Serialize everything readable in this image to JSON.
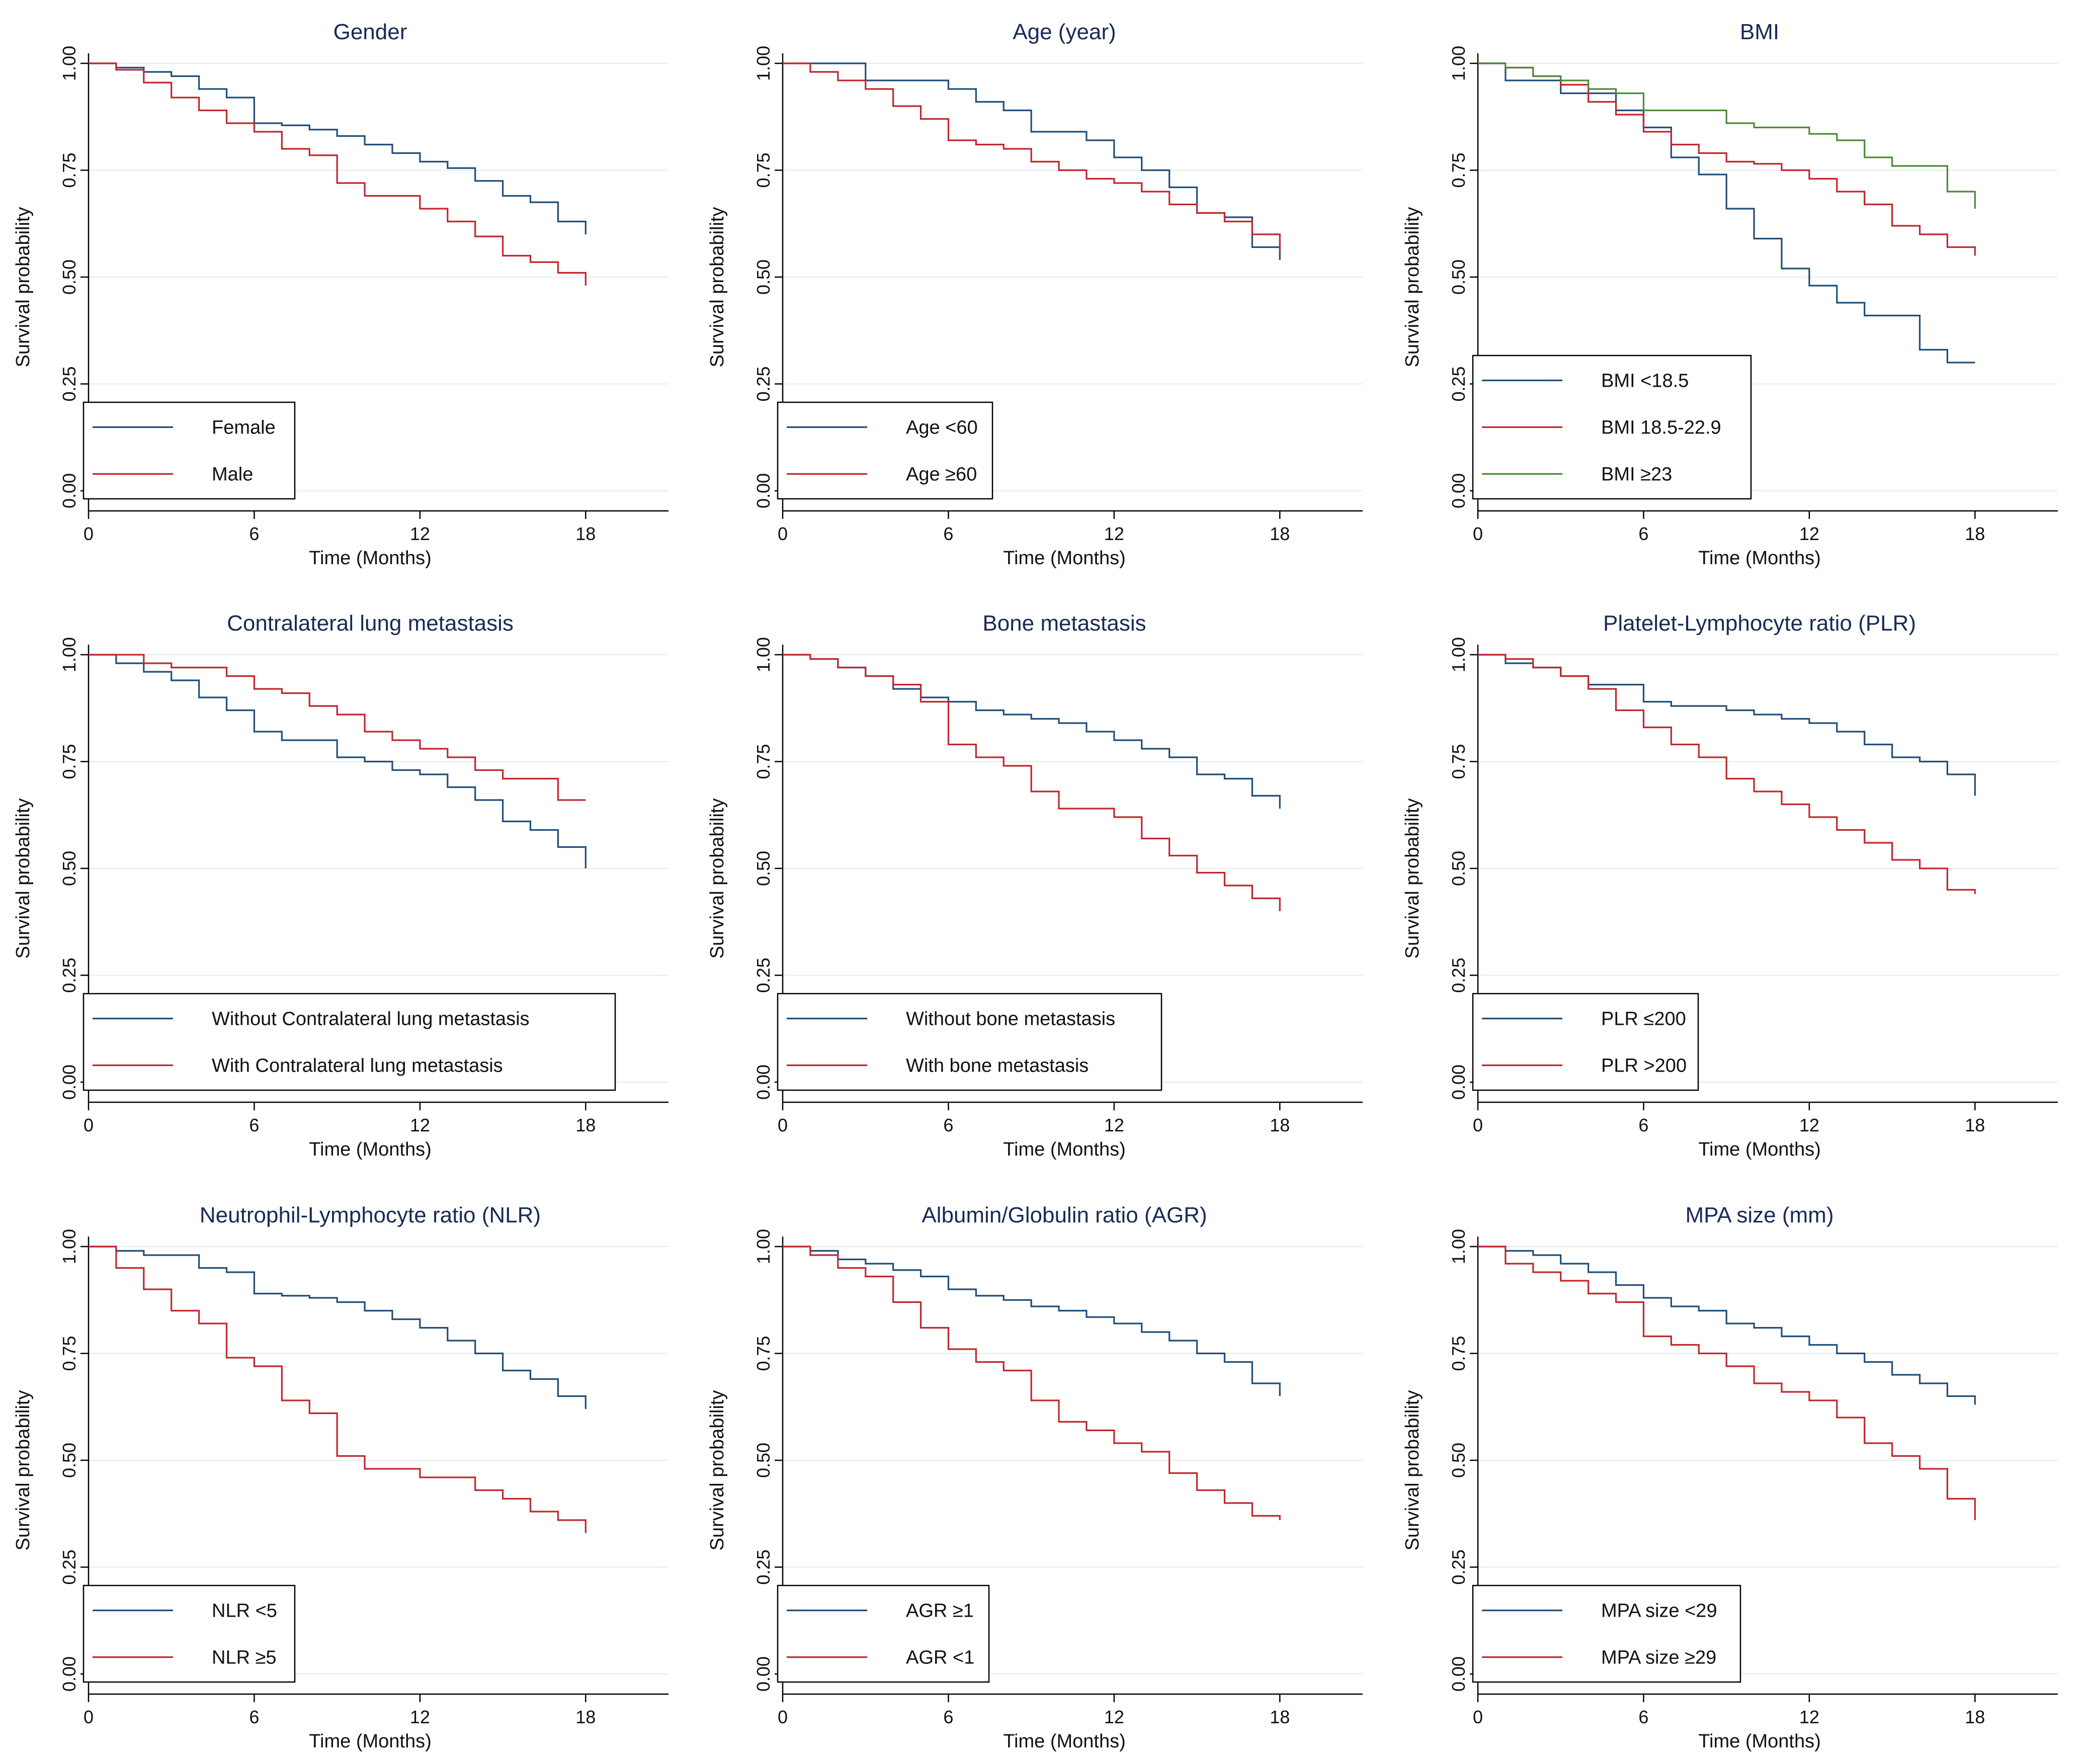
{
  "colors": {
    "blue": "#1f4e79",
    "red": "#c0272d",
    "green": "#4e8a35",
    "grid": "#e3ecef"
  },
  "chart_data": [
    {
      "type": "line",
      "step": true,
      "title": "Gender",
      "xlabel": "Time (Months)",
      "ylabel": "Survival probability",
      "xlim": [
        0,
        21
      ],
      "ylim": [
        0,
        1
      ],
      "xticks": [
        "0",
        "6",
        "12",
        "18"
      ],
      "yticks": [
        "0.00",
        "0.25",
        "0.50",
        "0.75",
        "1.00"
      ],
      "legend_position": "bottom-left",
      "series": [
        {
          "name": "Female",
          "color": "blue",
          "x": [
            0,
            1,
            2,
            3,
            4,
            5,
            6,
            7,
            8,
            9,
            10,
            11,
            12,
            13,
            14,
            15,
            16,
            17,
            18
          ],
          "values": [
            1.0,
            0.99,
            0.98,
            0.97,
            0.94,
            0.92,
            0.86,
            0.855,
            0.845,
            0.83,
            0.81,
            0.79,
            0.77,
            0.755,
            0.725,
            0.69,
            0.675,
            0.63,
            0.6
          ]
        },
        {
          "name": "Male",
          "color": "red",
          "x": [
            0,
            1,
            2,
            3,
            4,
            5,
            6,
            7,
            8,
            9,
            10,
            11,
            12,
            13,
            14,
            15,
            16,
            17,
            18
          ],
          "values": [
            1.0,
            0.985,
            0.955,
            0.92,
            0.89,
            0.86,
            0.84,
            0.8,
            0.785,
            0.72,
            0.69,
            0.69,
            0.66,
            0.63,
            0.595,
            0.55,
            0.535,
            0.51,
            0.48
          ]
        }
      ]
    },
    {
      "type": "line",
      "step": true,
      "title": "Age (year)",
      "xlabel": "Time (Months)",
      "ylabel": "Survival probability",
      "xlim": [
        0,
        21
      ],
      "ylim": [
        0,
        1
      ],
      "xticks": [
        "0",
        "6",
        "12",
        "18"
      ],
      "yticks": [
        "0.00",
        "0.25",
        "0.50",
        "0.75",
        "1.00"
      ],
      "legend_position": "bottom-left",
      "series": [
        {
          "name": "Age <60",
          "color": "blue",
          "x": [
            0,
            3,
            6,
            7,
            8,
            9,
            11,
            12,
            13,
            14,
            15,
            16,
            17,
            18
          ],
          "values": [
            1.0,
            0.96,
            0.94,
            0.91,
            0.89,
            0.84,
            0.82,
            0.78,
            0.75,
            0.71,
            0.65,
            0.64,
            0.57,
            0.54
          ]
        },
        {
          "name": "Age ≥60",
          "color": "red",
          "x": [
            0,
            1,
            2,
            3,
            4,
            5,
            6,
            7,
            8,
            9,
            10,
            11,
            12,
            13,
            14,
            15,
            16,
            17,
            18
          ],
          "values": [
            1.0,
            0.98,
            0.96,
            0.94,
            0.9,
            0.87,
            0.82,
            0.81,
            0.8,
            0.77,
            0.75,
            0.73,
            0.72,
            0.7,
            0.67,
            0.65,
            0.63,
            0.6,
            0.56
          ]
        }
      ]
    },
    {
      "type": "line",
      "step": true,
      "title": "BMI",
      "xlabel": "Time (Months)",
      "ylabel": "Survival probability",
      "xlim": [
        0,
        21
      ],
      "ylim": [
        0,
        1
      ],
      "xticks": [
        "0",
        "6",
        "12",
        "18"
      ],
      "yticks": [
        "0.00",
        "0.25",
        "0.50",
        "0.75",
        "1.00"
      ],
      "legend_position": "bottom-left",
      "series": [
        {
          "name": "BMI <18.5",
          "color": "blue",
          "x": [
            0,
            1,
            3,
            5,
            6,
            7,
            8,
            9,
            10,
            11,
            12,
            13,
            14,
            15,
            16,
            17,
            18
          ],
          "values": [
            1.0,
            0.96,
            0.93,
            0.89,
            0.85,
            0.78,
            0.74,
            0.66,
            0.59,
            0.52,
            0.48,
            0.44,
            0.41,
            0.41,
            0.33,
            0.3,
            0.3
          ]
        },
        {
          "name": "BMI 18.5-22.9",
          "color": "red",
          "x": [
            0,
            1,
            2,
            3,
            4,
            5,
            6,
            7,
            8,
            9,
            10,
            11,
            12,
            13,
            14,
            15,
            16,
            17,
            18
          ],
          "values": [
            1.0,
            0.99,
            0.97,
            0.95,
            0.91,
            0.88,
            0.84,
            0.81,
            0.79,
            0.77,
            0.765,
            0.75,
            0.73,
            0.7,
            0.67,
            0.62,
            0.6,
            0.57,
            0.55
          ]
        },
        {
          "name": "BMI ≥23",
          "color": "green",
          "x": [
            0,
            1,
            2,
            3,
            4,
            5,
            6,
            9,
            10,
            12,
            13,
            14,
            15,
            17,
            18
          ],
          "values": [
            1.0,
            0.99,
            0.97,
            0.96,
            0.94,
            0.93,
            0.89,
            0.86,
            0.85,
            0.835,
            0.82,
            0.78,
            0.76,
            0.7,
            0.66
          ]
        }
      ]
    },
    {
      "type": "line",
      "step": true,
      "title": "Contralateral lung metastasis",
      "xlabel": "Time (Months)",
      "ylabel": "Survival probability",
      "xlim": [
        0,
        21
      ],
      "ylim": [
        0,
        1
      ],
      "xticks": [
        "0",
        "6",
        "12",
        "18"
      ],
      "yticks": [
        "0.00",
        "0.25",
        "0.50",
        "0.75",
        "1.00"
      ],
      "legend_position": "bottom-left",
      "series": [
        {
          "name": "Without Contralateral lung metastasis",
          "color": "blue",
          "x": [
            0,
            1,
            2,
            3,
            4,
            5,
            6,
            7,
            9,
            10,
            11,
            12,
            13,
            14,
            15,
            16,
            17,
            18
          ],
          "values": [
            1.0,
            0.98,
            0.96,
            0.94,
            0.9,
            0.87,
            0.82,
            0.8,
            0.76,
            0.75,
            0.73,
            0.72,
            0.69,
            0.66,
            0.61,
            0.59,
            0.55,
            0.5
          ]
        },
        {
          "name": "With Contralateral lung metastasis",
          "color": "red",
          "x": [
            0,
            2,
            3,
            5,
            6,
            7,
            8,
            9,
            10,
            11,
            12,
            13,
            14,
            15,
            17,
            18
          ],
          "values": [
            1.0,
            0.98,
            0.97,
            0.95,
            0.92,
            0.91,
            0.88,
            0.86,
            0.82,
            0.8,
            0.78,
            0.76,
            0.73,
            0.71,
            0.66,
            0.66
          ]
        }
      ]
    },
    {
      "type": "line",
      "step": true,
      "title": "Bone metastasis",
      "xlabel": "Time (Months)",
      "ylabel": "Survival probability",
      "xlim": [
        0,
        21
      ],
      "ylim": [
        0,
        1
      ],
      "xticks": [
        "0",
        "6",
        "12",
        "18"
      ],
      "yticks": [
        "0.00",
        "0.25",
        "0.50",
        "0.75",
        "1.00"
      ],
      "legend_position": "bottom-left",
      "series": [
        {
          "name": "Without bone metastasis",
          "color": "blue",
          "x": [
            0,
            1,
            2,
            3,
            4,
            5,
            6,
            7,
            8,
            9,
            10,
            11,
            12,
            13,
            14,
            15,
            16,
            17,
            18
          ],
          "values": [
            1.0,
            0.99,
            0.97,
            0.95,
            0.92,
            0.9,
            0.89,
            0.87,
            0.86,
            0.85,
            0.84,
            0.82,
            0.8,
            0.78,
            0.76,
            0.72,
            0.71,
            0.67,
            0.64
          ]
        },
        {
          "name": "With bone metastasis",
          "color": "red",
          "x": [
            0,
            1,
            2,
            3,
            4,
            5,
            6,
            7,
            8,
            9,
            10,
            12,
            13,
            14,
            15,
            16,
            17,
            18
          ],
          "values": [
            1.0,
            0.99,
            0.97,
            0.95,
            0.93,
            0.89,
            0.79,
            0.76,
            0.74,
            0.68,
            0.64,
            0.62,
            0.57,
            0.53,
            0.49,
            0.46,
            0.43,
            0.4
          ]
        }
      ]
    },
    {
      "type": "line",
      "step": true,
      "title": "Platelet-Lymphocyte ratio (PLR)",
      "xlabel": "Time (Months)",
      "ylabel": "Survival probability",
      "xlim": [
        0,
        21
      ],
      "ylim": [
        0,
        1
      ],
      "xticks": [
        "0",
        "6",
        "12",
        "18"
      ],
      "yticks": [
        "0.00",
        "0.25",
        "0.50",
        "0.75",
        "1.00"
      ],
      "legend_position": "bottom-left",
      "series": [
        {
          "name": "PLR ≤200",
          "color": "blue",
          "x": [
            0,
            1,
            2,
            3,
            4,
            6,
            7,
            9,
            10,
            11,
            12,
            13,
            14,
            15,
            16,
            17,
            18
          ],
          "values": [
            1.0,
            0.98,
            0.97,
            0.95,
            0.93,
            0.89,
            0.88,
            0.87,
            0.86,
            0.85,
            0.84,
            0.82,
            0.79,
            0.76,
            0.75,
            0.72,
            0.67
          ]
        },
        {
          "name": "PLR >200",
          "color": "red",
          "x": [
            0,
            1,
            2,
            3,
            4,
            5,
            6,
            7,
            8,
            9,
            10,
            11,
            12,
            13,
            14,
            15,
            16,
            17,
            18
          ],
          "values": [
            1.0,
            0.99,
            0.97,
            0.95,
            0.92,
            0.87,
            0.83,
            0.79,
            0.76,
            0.71,
            0.68,
            0.65,
            0.62,
            0.59,
            0.56,
            0.52,
            0.5,
            0.45,
            0.44
          ]
        }
      ]
    },
    {
      "type": "line",
      "step": true,
      "title": "Neutrophil-Lymphocyte ratio (NLR)",
      "xlabel": "Time (Months)",
      "ylabel": "Survival probability",
      "xlim": [
        0,
        21
      ],
      "ylim": [
        0,
        1
      ],
      "xticks": [
        "0",
        "6",
        "12",
        "18"
      ],
      "yticks": [
        "0.00",
        "0.25",
        "0.50",
        "0.75",
        "1.00"
      ],
      "legend_position": "bottom-left",
      "series": [
        {
          "name": "NLR <5",
          "color": "blue",
          "x": [
            0,
            1,
            2,
            3,
            4,
            5,
            6,
            7,
            8,
            9,
            10,
            11,
            12,
            13,
            14,
            15,
            16,
            17,
            18
          ],
          "values": [
            1.0,
            0.99,
            0.98,
            0.98,
            0.95,
            0.94,
            0.89,
            0.885,
            0.88,
            0.87,
            0.85,
            0.83,
            0.81,
            0.78,
            0.75,
            0.71,
            0.69,
            0.65,
            0.62
          ]
        },
        {
          "name": "NLR ≥5",
          "color": "red",
          "x": [
            0,
            1,
            2,
            3,
            4,
            5,
            6,
            7,
            8,
            9,
            10,
            12,
            14,
            15,
            16,
            17,
            18
          ],
          "values": [
            1.0,
            0.95,
            0.9,
            0.85,
            0.82,
            0.74,
            0.72,
            0.64,
            0.61,
            0.51,
            0.48,
            0.46,
            0.43,
            0.41,
            0.38,
            0.36,
            0.33
          ]
        }
      ]
    },
    {
      "type": "line",
      "step": true,
      "title": "Albumin/Globulin ratio (AGR)",
      "xlabel": "Time (Months)",
      "ylabel": "Survival probability",
      "xlim": [
        0,
        21
      ],
      "ylim": [
        0,
        1
      ],
      "xticks": [
        "0",
        "6",
        "12",
        "18"
      ],
      "yticks": [
        "0.00",
        "0.25",
        "0.50",
        "0.75",
        "1.00"
      ],
      "legend_position": "bottom-left",
      "series": [
        {
          "name": "AGR ≥1",
          "color": "blue",
          "x": [
            0,
            1,
            2,
            3,
            4,
            5,
            6,
            7,
            8,
            9,
            10,
            11,
            12,
            13,
            14,
            15,
            16,
            17,
            18
          ],
          "values": [
            1.0,
            0.99,
            0.97,
            0.96,
            0.945,
            0.93,
            0.9,
            0.885,
            0.875,
            0.86,
            0.85,
            0.835,
            0.82,
            0.8,
            0.78,
            0.75,
            0.73,
            0.68,
            0.65
          ]
        },
        {
          "name": "AGR <1",
          "color": "red",
          "x": [
            0,
            1,
            2,
            3,
            4,
            5,
            6,
            7,
            8,
            9,
            10,
            11,
            12,
            13,
            14,
            15,
            16,
            17,
            18
          ],
          "values": [
            1.0,
            0.98,
            0.95,
            0.93,
            0.87,
            0.81,
            0.76,
            0.73,
            0.71,
            0.64,
            0.59,
            0.57,
            0.54,
            0.52,
            0.47,
            0.43,
            0.4,
            0.37,
            0.36
          ]
        }
      ]
    },
    {
      "type": "line",
      "step": true,
      "title": "MPA size (mm)",
      "xlabel": "Time (Months)",
      "ylabel": "Survival probability",
      "xlim": [
        0,
        21
      ],
      "ylim": [
        0,
        1
      ],
      "xticks": [
        "0",
        "6",
        "12",
        "18"
      ],
      "yticks": [
        "0.00",
        "0.25",
        "0.50",
        "0.75",
        "1.00"
      ],
      "legend_position": "bottom-left",
      "series": [
        {
          "name": "MPA size <29",
          "color": "blue",
          "x": [
            0,
            1,
            2,
            3,
            4,
            5,
            6,
            7,
            8,
            9,
            10,
            11,
            12,
            13,
            14,
            15,
            16,
            17,
            18
          ],
          "values": [
            1.0,
            0.99,
            0.98,
            0.96,
            0.94,
            0.91,
            0.88,
            0.86,
            0.85,
            0.82,
            0.81,
            0.79,
            0.77,
            0.75,
            0.73,
            0.7,
            0.68,
            0.65,
            0.63
          ]
        },
        {
          "name": "MPA size ≥29",
          "color": "red",
          "x": [
            0,
            1,
            2,
            3,
            4,
            5,
            6,
            7,
            8,
            9,
            10,
            11,
            12,
            13,
            14,
            15,
            16,
            17,
            18
          ],
          "values": [
            1.0,
            0.96,
            0.94,
            0.92,
            0.89,
            0.87,
            0.79,
            0.77,
            0.75,
            0.72,
            0.68,
            0.66,
            0.64,
            0.6,
            0.54,
            0.51,
            0.48,
            0.41,
            0.36
          ]
        }
      ]
    }
  ]
}
